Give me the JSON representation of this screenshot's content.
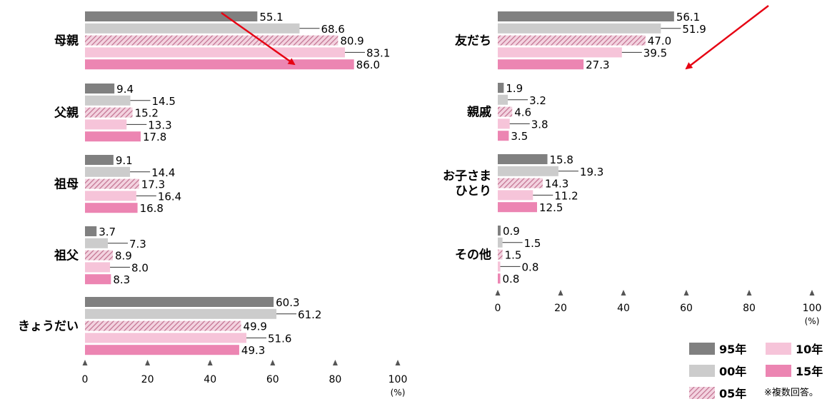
{
  "chart_data": [
    {
      "type": "bar",
      "orientation": "horizontal",
      "categories": [
        "母親",
        "父親",
        "祖母",
        "祖父",
        "きょうだい"
      ],
      "series": [
        {
          "name": "95年",
          "values": [
            55.1,
            9.4,
            9.1,
            3.7,
            60.3
          ]
        },
        {
          "name": "00年",
          "values": [
            68.6,
            14.5,
            14.4,
            7.3,
            61.2
          ]
        },
        {
          "name": "05年",
          "values": [
            80.9,
            15.2,
            17.3,
            8.9,
            49.9
          ]
        },
        {
          "name": "10年",
          "values": [
            83.1,
            13.3,
            16.4,
            8.0,
            51.6
          ]
        },
        {
          "name": "15年",
          "values": [
            86.0,
            17.8,
            16.8,
            8.3,
            49.3
          ]
        }
      ],
      "xlim": [
        0,
        100
      ],
      "xticks": [
        "0",
        "20",
        "40",
        "60",
        "80",
        "100"
      ],
      "unit": "(%)",
      "annotation": "red arrow pointing down-right (increasing trend)"
    },
    {
      "type": "bar",
      "orientation": "horizontal",
      "categories": [
        "友だち",
        "親戚",
        "お子さま\nひとり",
        "その他"
      ],
      "series": [
        {
          "name": "95年",
          "values": [
            56.1,
            1.9,
            15.8,
            0.9
          ]
        },
        {
          "name": "00年",
          "values": [
            51.9,
            3.2,
            19.3,
            1.5
          ]
        },
        {
          "name": "05年",
          "values": [
            47.0,
            4.6,
            14.3,
            1.5
          ]
        },
        {
          "name": "10年",
          "values": [
            39.5,
            3.8,
            11.2,
            0.8
          ]
        },
        {
          "name": "15年",
          "values": [
            27.3,
            3.5,
            12.5,
            0.8
          ]
        }
      ],
      "xlim": [
        0,
        100
      ],
      "xticks": [
        "0",
        "20",
        "40",
        "60",
        "80",
        "100"
      ],
      "unit": "(%)",
      "annotation": "red arrow pointing down-left (decreasing trend)"
    }
  ],
  "legend": [
    {
      "label": "95年",
      "color": "#808080",
      "pattern": "solid"
    },
    {
      "label": "10年",
      "color": "#f6c4d9",
      "pattern": "solid"
    },
    {
      "label": "00年",
      "color": "#cccccc",
      "pattern": "solid"
    },
    {
      "label": "15年",
      "color": "#ec85b2",
      "pattern": "solid"
    },
    {
      "label": "05年",
      "color": "#d48aa8",
      "pattern": "hatched"
    }
  ],
  "note": "※複数回答。",
  "colors": {
    "y95": "#808080",
    "y00": "#cccccc",
    "y05_fg": "#d48aa8",
    "y10": "#f6c4d9",
    "y15": "#ec85b2",
    "arrow": "#e60012",
    "axis": "#555555"
  }
}
